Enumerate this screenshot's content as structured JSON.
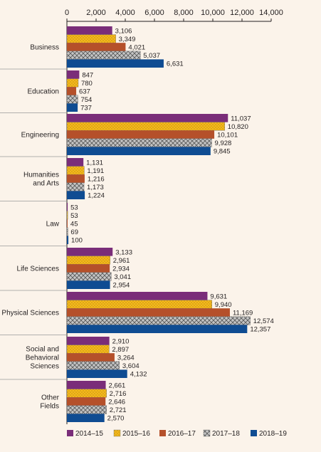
{
  "chart_data": {
    "type": "bar",
    "orientation": "horizontal",
    "categories": [
      "Business",
      "Education",
      "Engineering",
      "Humanities and Arts",
      "Law",
      "Life Sciences",
      "Physical Sciences",
      "Social and Behavioral Sciences",
      "Other Fields"
    ],
    "category_lines": [
      [
        "Business"
      ],
      [
        "Education"
      ],
      [
        "Engineering"
      ],
      [
        "Humanities",
        "and Arts"
      ],
      [
        "Law"
      ],
      [
        "Life Sciences"
      ],
      [
        "Physical Sciences"
      ],
      [
        "Social and",
        "Behavioral",
        "Sciences"
      ],
      [
        "Other",
        "Fields"
      ]
    ],
    "series": [
      {
        "name": "2014–15",
        "color": "#7a2d79",
        "pattern": "solid",
        "values": [
          3106,
          847,
          11037,
          1131,
          53,
          3133,
          9631,
          2910,
          2661
        ]
      },
      {
        "name": "2015–16",
        "color": "#f5b91c",
        "pattern": "dots",
        "values": [
          3349,
          780,
          10820,
          1191,
          53,
          2961,
          9940,
          2897,
          2716
        ]
      },
      {
        "name": "2016–17",
        "color": "#b5502a",
        "pattern": "solid",
        "values": [
          4021,
          637,
          10101,
          1216,
          45,
          2934,
          11169,
          3264,
          2646
        ]
      },
      {
        "name": "2017–18",
        "color": "#bcbcbc",
        "pattern": "crosshatch",
        "values": [
          5037,
          754,
          9928,
          1173,
          69,
          3041,
          12574,
          3604,
          2721
        ]
      },
      {
        "name": "2018–19",
        "color": "#0f4c92",
        "pattern": "solid",
        "values": [
          6631,
          737,
          9845,
          1224,
          100,
          2954,
          12357,
          4132,
          2570
        ]
      }
    ],
    "x_ticks": [
      "0",
      "2,000",
      "4,000",
      "6,000",
      "8,000",
      "10,000",
      "12,000",
      "14,000"
    ],
    "xlim": [
      0,
      14000
    ],
    "legend_position": "bottom",
    "grid": false
  }
}
